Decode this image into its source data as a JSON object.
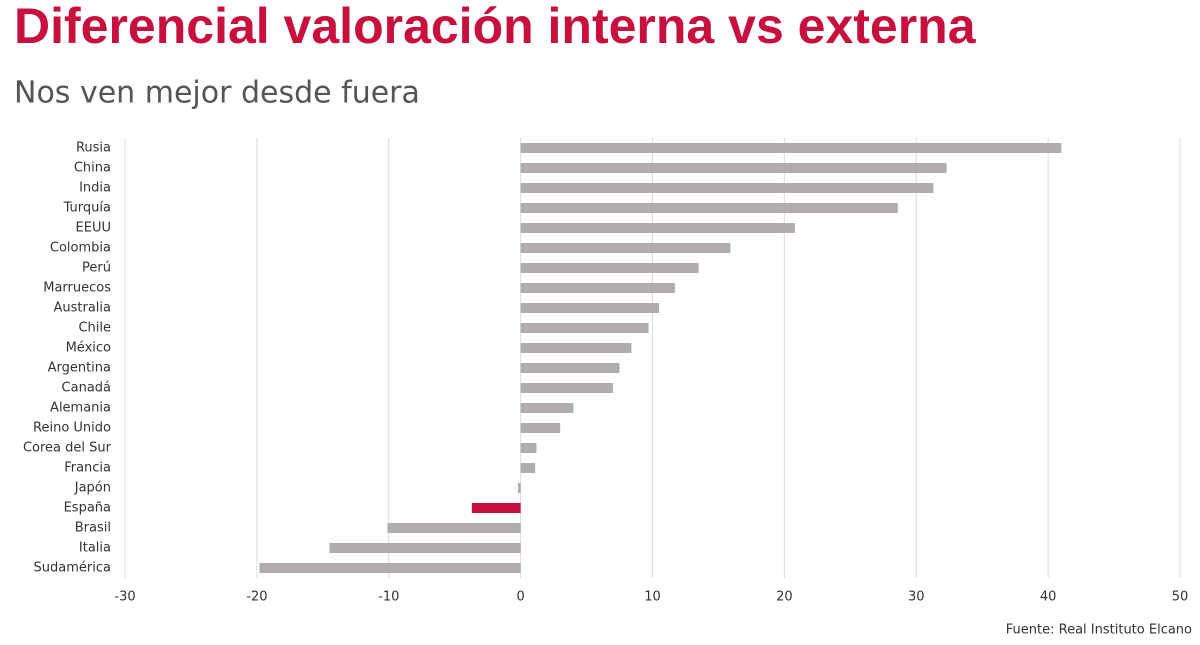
{
  "chart_data": {
    "type": "hbar",
    "title": "Diferencial valoración interna vs externa",
    "subtitle": "Nos ven mejor desde fuera",
    "source": "Fuente: Real Instituto Elcano",
    "categories": [
      "Rusia",
      "China",
      "India",
      "Turquía",
      "EEUU",
      "Colombia",
      "Perú",
      "Marruecos",
      "Australia",
      "Chile",
      "México",
      "Argentina",
      "Canadá",
      "Alemania",
      "Reino Unido",
      "Corea del Sur",
      "Francia",
      "Japón",
      "España",
      "Brasil",
      "Italia",
      "Sudamérica"
    ],
    "values": [
      41.0,
      32.3,
      31.3,
      28.6,
      20.8,
      15.9,
      13.5,
      11.7,
      10.5,
      9.7,
      8.4,
      7.5,
      7.0,
      4.0,
      3.0,
      1.2,
      1.1,
      -0.2,
      -3.7,
      -10.1,
      -14.5,
      -19.8
    ],
    "colors": [
      "#b1adad",
      "#b1adad",
      "#b1adad",
      "#b1adad",
      "#b1adad",
      "#b1adad",
      "#b1adad",
      "#b1adad",
      "#b1adad",
      "#b1adad",
      "#b1adad",
      "#b1adad",
      "#b1adad",
      "#b1adad",
      "#b1adad",
      "#b1adad",
      "#b1adad",
      "#b1adad",
      "#c8103e",
      "#b1adad",
      "#b1adad",
      "#b1adad"
    ],
    "xlim": [
      -30,
      50
    ],
    "xticks": [
      -30,
      -20,
      -10,
      0,
      10,
      20,
      30,
      40,
      50
    ],
    "grid": true
  }
}
